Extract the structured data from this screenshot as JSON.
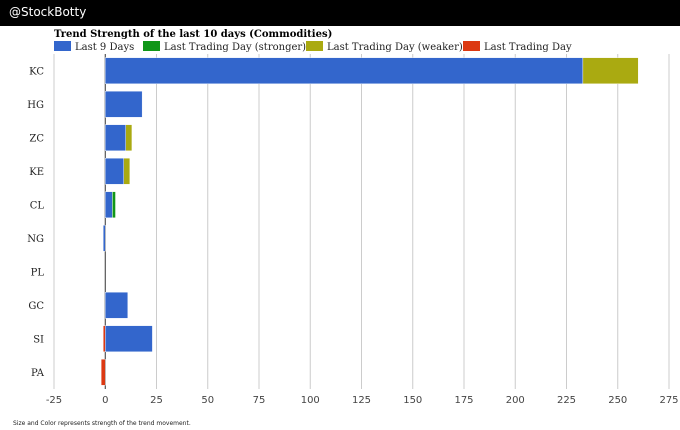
{
  "header": {
    "title": "@StockBotty"
  },
  "footnote": "Size and Color represents strength of the trend movement.",
  "chart_data": {
    "type": "bar",
    "orientation": "horizontal",
    "stacked": true,
    "title": "Trend Strength of the last 10 days (Commodities)",
    "xlabel": "",
    "ylabel": "",
    "xlim": [
      -25,
      275
    ],
    "xticks": [
      -25,
      0,
      25,
      50,
      75,
      100,
      125,
      150,
      175,
      200,
      225,
      250,
      275
    ],
    "grid": true,
    "legend_position": "top-left",
    "categories": [
      "KC",
      "HG",
      "ZC",
      "KE",
      "CL",
      "NG",
      "PL",
      "GC",
      "SI",
      "PA"
    ],
    "series": [
      {
        "name": "Last 9 Days",
        "color": "#3366cc",
        "values": [
          233,
          18,
          10,
          9,
          3.5,
          -1,
          0,
          11,
          23,
          0
        ]
      },
      {
        "name": "Last Trading Day (stronger)",
        "color": "#109618",
        "values": [
          0,
          0,
          0,
          0,
          1.5,
          0,
          0,
          0,
          0,
          0
        ]
      },
      {
        "name": "Last Trading Day (weaker)",
        "color": "#aaaa11",
        "values": [
          27,
          0,
          3,
          3,
          0,
          0,
          0,
          0,
          0,
          0
        ]
      },
      {
        "name": "Last Trading Day",
        "color": "#dc3912",
        "values": [
          0,
          0,
          0,
          0,
          0,
          0,
          0,
          0,
          -1,
          -2
        ]
      }
    ]
  }
}
